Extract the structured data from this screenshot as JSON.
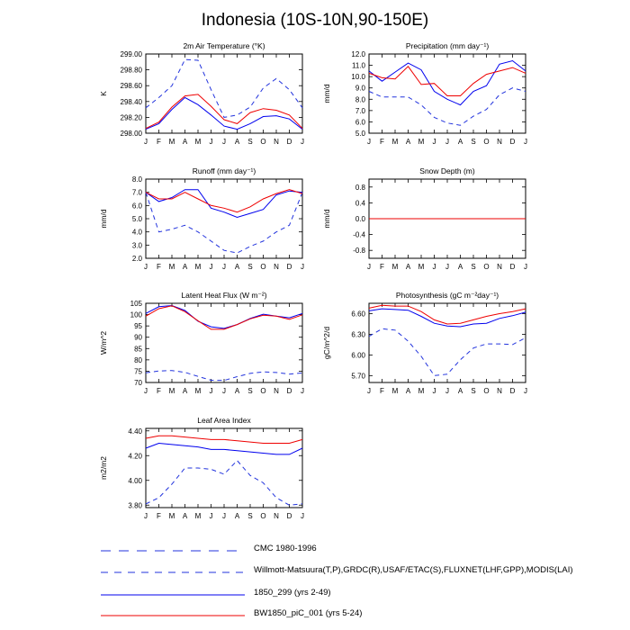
{
  "title": "Indonesia (10S-10N,90-150E)",
  "months": [
    "J",
    "F",
    "M",
    "A",
    "M",
    "J",
    "J",
    "A",
    "S",
    "O",
    "N",
    "D",
    "J"
  ],
  "colors": {
    "cmc": "#3344cc",
    "willmott": "#2233dd",
    "blue": "#0000ee",
    "red": "#ee0000"
  },
  "legend": [
    {
      "label": "CMC 1980-1996",
      "color": "#2233dd",
      "dash": "long"
    },
    {
      "label": "Willmott-Matsuura(T,P),GRDC(R),USAF/ETAC(S),FLUXNET(LHF,GPP),MODIS(LAI)",
      "color": "#2233dd",
      "dash": "medium"
    },
    {
      "label": "1850_299 (yrs 2-49)",
      "color": "#0000ee",
      "dash": "solid"
    },
    {
      "label": "BW1850_piC_001 (yrs 5-24)",
      "color": "#ee0000",
      "dash": "solid"
    }
  ],
  "chart_data": [
    {
      "type": "line",
      "title": "2m Air Temperature (°K)",
      "ylabel": "K",
      "ylim": [
        298.0,
        299.0
      ],
      "yticks": [
        298.0,
        298.2,
        298.4,
        298.6,
        298.8,
        299.0
      ],
      "ytick_labels": [
        "298.00",
        "298.20",
        "298.40",
        "298.60",
        "298.80",
        "299.00"
      ],
      "series": [
        {
          "style": "dash",
          "values": [
            298.32,
            298.45,
            298.6,
            298.93,
            298.92,
            298.55,
            298.2,
            298.23,
            298.33,
            298.57,
            298.69,
            298.55,
            298.32
          ]
        },
        {
          "style": "blue",
          "values": [
            298.05,
            298.12,
            298.3,
            298.45,
            298.36,
            298.23,
            298.09,
            298.05,
            298.12,
            298.21,
            298.22,
            298.18,
            298.05
          ]
        },
        {
          "style": "red",
          "values": [
            298.06,
            298.14,
            298.33,
            298.47,
            298.49,
            298.34,
            298.17,
            298.12,
            298.26,
            298.31,
            298.29,
            298.23,
            298.06
          ]
        }
      ]
    },
    {
      "type": "line",
      "title": "Precipitation (mm day⁻¹)",
      "ylabel": "mm/d",
      "ylim": [
        5.0,
        12.0
      ],
      "yticks": [
        5,
        6,
        7,
        8,
        9,
        10,
        11,
        12
      ],
      "ytick_labels": [
        "5.0",
        "6.0",
        "7.0",
        "8.0",
        "9.0",
        "10.0",
        "11.0",
        "12.0"
      ],
      "series": [
        {
          "style": "dash",
          "values": [
            8.7,
            8.2,
            8.2,
            8.2,
            7.5,
            6.4,
            5.9,
            5.7,
            6.5,
            7.1,
            8.4,
            9.0,
            8.7
          ]
        },
        {
          "style": "blue",
          "values": [
            10.5,
            9.6,
            10.4,
            11.2,
            10.6,
            8.7,
            8.0,
            7.5,
            8.7,
            9.2,
            11.1,
            11.4,
            10.5
          ]
        },
        {
          "style": "red",
          "values": [
            10.3,
            9.9,
            9.8,
            10.9,
            9.3,
            9.4,
            8.3,
            8.3,
            9.4,
            10.2,
            10.5,
            10.8,
            10.3
          ]
        }
      ]
    },
    {
      "type": "line",
      "title": "Runoff (mm day⁻¹)",
      "ylabel": "mm/d",
      "ylim": [
        2.0,
        8.0
      ],
      "yticks": [
        2,
        3,
        4,
        5,
        6,
        7,
        8
      ],
      "ytick_labels": [
        "2.0",
        "3.0",
        "4.0",
        "5.0",
        "6.0",
        "7.0",
        "8.0"
      ],
      "series": [
        {
          "style": "dash",
          "values": [
            7.0,
            4.0,
            4.2,
            4.5,
            4.0,
            3.3,
            2.6,
            2.4,
            2.9,
            3.3,
            4.0,
            4.5,
            7.0
          ]
        },
        {
          "style": "blue",
          "values": [
            7.0,
            6.3,
            6.6,
            7.2,
            7.2,
            5.8,
            5.5,
            5.1,
            5.4,
            5.7,
            6.8,
            7.1,
            7.0
          ]
        },
        {
          "style": "red",
          "values": [
            7.0,
            6.5,
            6.5,
            7.0,
            6.5,
            6.0,
            5.8,
            5.5,
            5.9,
            6.5,
            6.9,
            7.2,
            6.9
          ]
        }
      ]
    },
    {
      "type": "line",
      "title": "Snow Depth (m)",
      "ylabel": "mm/d",
      "ylim": [
        -1.0,
        1.0
      ],
      "yticks": [
        -0.8,
        -0.4,
        0.0,
        0.4,
        0.8
      ],
      "ytick_labels": [
        "-0.8",
        "-0.4",
        "0.0",
        "0.4",
        "0.8"
      ],
      "series": [
        {
          "style": "dash",
          "values": [
            0,
            0,
            0,
            0,
            0,
            0,
            0,
            0,
            0,
            0,
            0,
            0,
            0
          ]
        },
        {
          "style": "blue",
          "values": [
            0,
            0,
            0,
            0,
            0,
            0,
            0,
            0,
            0,
            0,
            0,
            0,
            0
          ]
        },
        {
          "style": "red",
          "values": [
            0,
            0,
            0,
            0,
            0,
            0,
            0,
            0,
            0,
            0,
            0,
            0,
            0
          ]
        }
      ]
    },
    {
      "type": "line",
      "title": "Latent Heat Flux (W m⁻²)",
      "ylabel": "W/m^2",
      "ylim": [
        70,
        105
      ],
      "yticks": [
        70,
        75,
        80,
        85,
        90,
        95,
        100,
        105
      ],
      "ytick_labels": [
        "70",
        "75",
        "80",
        "85",
        "90",
        "95",
        "100",
        "105"
      ],
      "series": [
        {
          "style": "dash",
          "values": [
            74.3,
            75.1,
            75.3,
            74.5,
            72.7,
            71.0,
            70.9,
            72.6,
            74.0,
            74.7,
            74.4,
            73.7,
            74.2
          ]
        },
        {
          "style": "blue",
          "values": [
            100.5,
            103.5,
            104.0,
            101.8,
            97.1,
            94.6,
            93.9,
            95.6,
            98.3,
            100.2,
            99.3,
            98.6,
            100.5
          ]
        },
        {
          "style": "red",
          "values": [
            99.3,
            102.6,
            103.9,
            101.3,
            97.3,
            93.5,
            93.5,
            95.6,
            98.1,
            99.7,
            99.3,
            97.9,
            99.9
          ]
        }
      ]
    },
    {
      "type": "line",
      "title": "Photosynthesis (gC m⁻²day⁻¹)",
      "ylabel": "gC/m^2/d",
      "ylim": [
        5.6,
        6.75
      ],
      "yticks": [
        5.7,
        6.0,
        6.3,
        6.6
      ],
      "ytick_labels": [
        "5.70",
        "6.00",
        "6.30",
        "6.60"
      ],
      "series": [
        {
          "style": "dash",
          "values": [
            6.27,
            6.38,
            6.36,
            6.2,
            5.98,
            5.7,
            5.72,
            5.93,
            6.1,
            6.16,
            6.16,
            6.15,
            6.25
          ]
        },
        {
          "style": "blue",
          "values": [
            6.64,
            6.67,
            6.66,
            6.65,
            6.56,
            6.46,
            6.42,
            6.41,
            6.45,
            6.46,
            6.53,
            6.57,
            6.62
          ]
        },
        {
          "style": "red",
          "values": [
            6.68,
            6.72,
            6.71,
            6.71,
            6.63,
            6.51,
            6.45,
            6.46,
            6.51,
            6.56,
            6.6,
            6.63,
            6.67
          ]
        }
      ]
    },
    {
      "type": "line",
      "title": "Leaf Area Index",
      "ylabel": "m2/m2",
      "ylim": [
        3.78,
        4.42
      ],
      "yticks": [
        3.8,
        4.0,
        4.2,
        4.4
      ],
      "ytick_labels": [
        "3.80",
        "4.00",
        "4.20",
        "4.40"
      ],
      "series": [
        {
          "style": "dash",
          "values": [
            3.81,
            3.86,
            3.97,
            4.1,
            4.1,
            4.09,
            4.05,
            4.16,
            4.04,
            3.98,
            3.86,
            3.8,
            3.81
          ]
        },
        {
          "style": "blue",
          "values": [
            4.26,
            4.3,
            4.29,
            4.28,
            4.27,
            4.25,
            4.25,
            4.24,
            4.23,
            4.22,
            4.21,
            4.21,
            4.26
          ]
        },
        {
          "style": "red",
          "values": [
            4.34,
            4.36,
            4.36,
            4.35,
            4.34,
            4.33,
            4.33,
            4.32,
            4.31,
            4.3,
            4.3,
            4.3,
            4.33
          ]
        }
      ]
    }
  ]
}
